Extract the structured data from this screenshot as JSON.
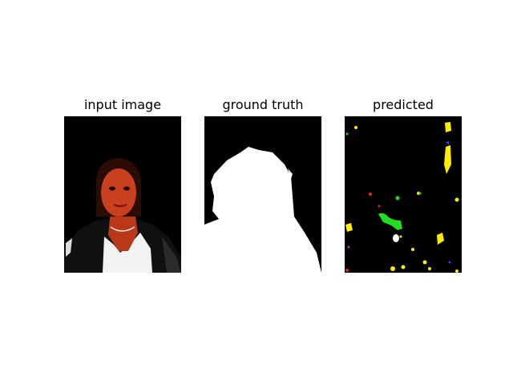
{
  "panels": [
    {
      "title": "input image"
    },
    {
      "title": "ground truth"
    },
    {
      "title": "predicted"
    }
  ],
  "colors": {
    "background": "#ffffff",
    "panel_bg": "#000000",
    "skin": "#c8401e",
    "hair": "#3a1208",
    "shirt": "#ffffff",
    "mask": "#ffffff",
    "pred_yellow": "#ffee00",
    "pred_green": "#22dd22",
    "pred_white": "#ffffff",
    "pred_red": "#ee2222",
    "pred_blue": "#3344ff",
    "pred_magenta": "#cc22cc"
  }
}
